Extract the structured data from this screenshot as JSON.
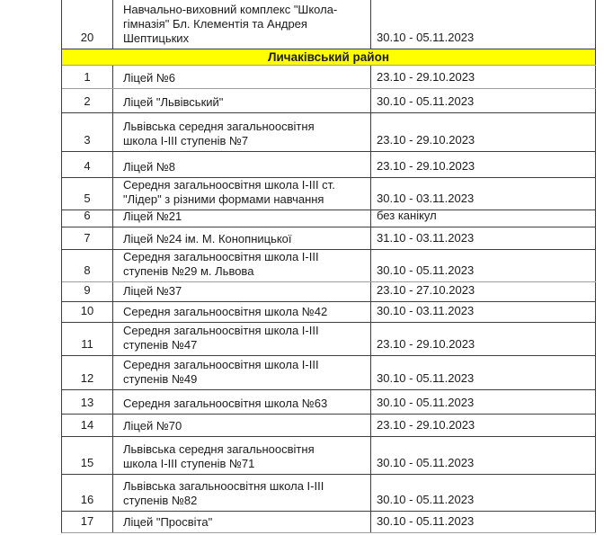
{
  "colors": {
    "page_bg": "#ffffff",
    "text": "#1c1c1c",
    "table_border": "#3e3e3e",
    "table_border_light": "#9e9e9e",
    "section_header_bg": "#ffff00"
  },
  "table": {
    "columns": [
      "number",
      "school_name",
      "vacation_dates"
    ],
    "rows_before_section": [
      {
        "number": "20",
        "name": "Навчально-виховний комплекс \"Школа-гімназія\" Бл. Клементія та Андрея Шептицьких",
        "dates": "30.10 - 05.11.2023"
      }
    ],
    "section_header": "Личаківський район",
    "rows": [
      {
        "number": "1",
        "name": "Ліцей №6",
        "dates": "23.10 - 29.10.2023"
      },
      {
        "number": "2",
        "name": "Ліцей \"Львівський\"",
        "dates": "30.10 - 05.11.2023"
      },
      {
        "number": "3",
        "name": "Львівська середня загальноосвітня школа І-ІІІ ступенів №7",
        "dates": "23.10 - 29.10.2023"
      },
      {
        "number": "4",
        "name": "Ліцей №8",
        "dates": "23.10 - 29.10.2023"
      },
      {
        "number": "5",
        "name": "Середня загальноосвітня школа І-ІІІ ст. \"Лідер\" з різними формами навчання",
        "dates": "30.10 - 03.11.2023"
      },
      {
        "number": "6",
        "name": "Ліцей №21",
        "dates": "без канікул"
      },
      {
        "number": "7",
        "name": "Ліцей №24 ім. М. Конопницької",
        "dates": "31.10 - 03.11.2023"
      },
      {
        "number": "8",
        "name": "Середня загальноосвітня школа І-ІІІ ступенів №29 м. Львова",
        "dates": "30.10 - 05.11.2023"
      },
      {
        "number": "9",
        "name": "Ліцей №37",
        "dates": "23.10 - 27.10.2023"
      },
      {
        "number": "10",
        "name": "Середня загальноосвітня школа №42",
        "dates": "30.10 - 03.11.2023"
      },
      {
        "number": "11",
        "name": "Середня загальноосвітня школа І-ІІІ ступенів №47",
        "dates": "23.10 - 29.10.2023"
      },
      {
        "number": "12",
        "name": "Середня загальноосвітня школа І-ІІІ ступенів №49",
        "dates": "30.10 - 05.11.2023"
      },
      {
        "number": "13",
        "name": "Середня загальноосвітня школа №63",
        "dates": "30.10 - 05.11.2023"
      },
      {
        "number": "14",
        "name": "Ліцей №70",
        "dates": "23.10 - 29.10.2023"
      },
      {
        "number": "15",
        "name": "Львівська середня загальноосвітня школа І-ІІІ ступенів №71",
        "dates": "30.10 - 05.11.2023"
      },
      {
        "number": "16",
        "name": "Львівська загальноосвітня школа І-ІІІ ступенів №82",
        "dates": "30.10 - 05.11.2023"
      },
      {
        "number": "17",
        "name": "Ліцей \"Просвіта\"",
        "dates": "30.10 - 05.11.2023"
      }
    ]
  }
}
